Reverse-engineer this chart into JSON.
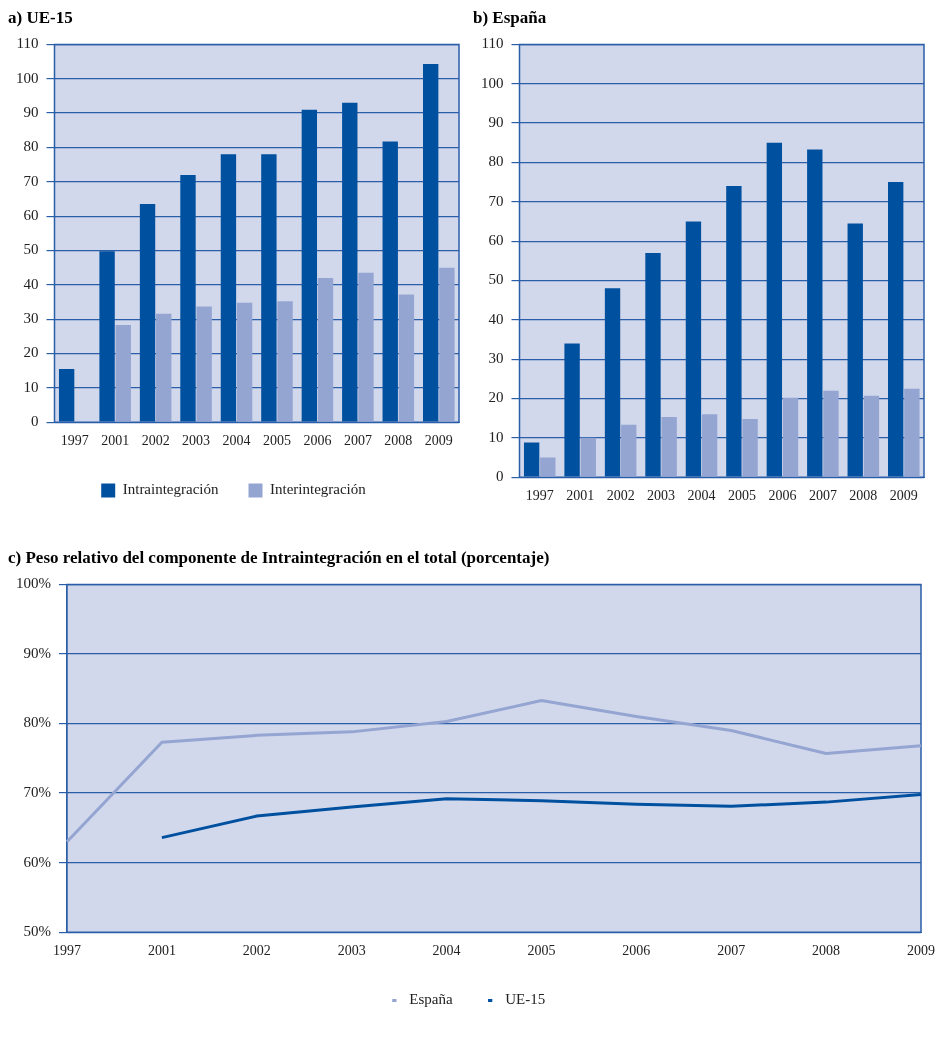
{
  "chart_data": [
    {
      "type": "bar",
      "title": "a) UE-15",
      "categories": [
        "1997",
        "2001",
        "2002",
        "2003",
        "2004",
        "2005",
        "2006",
        "2007",
        "2008",
        "2009"
      ],
      "series": [
        {
          "name": "Intraintegración",
          "color": "#0050a0",
          "values": [
            15.5,
            49.8,
            63.5,
            72,
            78,
            78,
            91,
            93,
            81.7,
            104.3
          ]
        },
        {
          "name": "Interintegración",
          "color": "#95a5d2",
          "values": [
            null,
            28.3,
            31.6,
            33.7,
            34.8,
            35.2,
            42,
            43.5,
            37.2,
            45
          ]
        }
      ],
      "ylim": [
        0,
        110
      ],
      "yticks": [
        0,
        10,
        20,
        30,
        40,
        50,
        60,
        70,
        80,
        90,
        100,
        110
      ],
      "grid": "y",
      "legend": "bottom"
    },
    {
      "type": "bar",
      "title": "b) España",
      "categories": [
        "1997",
        "2001",
        "2002",
        "2003",
        "2004",
        "2005",
        "2006",
        "2007",
        "2008",
        "2009"
      ],
      "series": [
        {
          "color": "#0050a0",
          "values": [
            8.8,
            34,
            48,
            57,
            65,
            74,
            85,
            83.3,
            64.5,
            75
          ]
        },
        {
          "color": "#95a5d2",
          "values": [
            5,
            10,
            13.3,
            15.3,
            16,
            14.8,
            20.2,
            22,
            20.7,
            22.5
          ]
        }
      ],
      "ylim": [
        0,
        110
      ],
      "yticks": [
        0,
        10,
        20,
        30,
        40,
        50,
        60,
        70,
        80,
        90,
        100,
        110
      ],
      "grid": "y"
    },
    {
      "type": "line",
      "title": "c) Peso relativo del componente de Intraintegración en el total (porcentaje)",
      "categories": [
        "1997",
        "2001",
        "2002",
        "2003",
        "2004",
        "2005",
        "2006",
        "2007",
        "2008",
        "2009"
      ],
      "series": [
        {
          "name": "España",
          "color": "#95a5d2",
          "values": [
            63,
            77.3,
            78.3,
            78.8,
            80.3,
            83.3,
            81,
            79,
            75.7,
            76.8
          ]
        },
        {
          "name": "UE-15",
          "color": "#0050a0",
          "values": [
            null,
            63.6,
            66.7,
            68,
            69.2,
            68.9,
            68.4,
            68.1,
            68.7,
            69.8
          ]
        }
      ],
      "ylim": [
        50,
        100
      ],
      "yticks": [
        {
          "value": 50,
          "label": "50%"
        },
        {
          "value": 60,
          "label": "60%"
        },
        {
          "value": 70,
          "label": "70%"
        },
        {
          "value": 80,
          "label": "80%"
        },
        {
          "value": 90,
          "label": "90%"
        },
        {
          "value": 100,
          "label": "100%"
        }
      ],
      "grid": "y",
      "legend": "bottom",
      "marker": "none"
    }
  ]
}
